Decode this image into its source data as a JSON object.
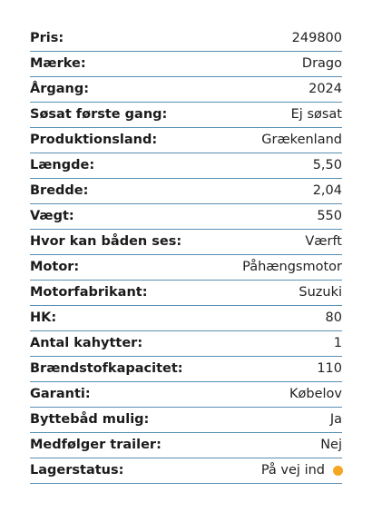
{
  "specs": [
    {
      "label": "Pris:",
      "value": "249800"
    },
    {
      "label": "Mærke:",
      "value": "Drago"
    },
    {
      "label": "Årgang:",
      "value": "2024"
    },
    {
      "label": "Søsat første gang:",
      "value": "Ej søsat"
    },
    {
      "label": "Produktionsland:",
      "value": "Grækenland"
    },
    {
      "label": "Længde:",
      "value": "5,50"
    },
    {
      "label": "Bredde:",
      "value": "2,04"
    },
    {
      "label": "Vægt:",
      "value": "550"
    },
    {
      "label": "Hvor kan båden ses:",
      "value": "Værft"
    },
    {
      "label": "Motor:",
      "value": "Påhængsmotor"
    },
    {
      "label": "Motorfabrikant:",
      "value": "Suzuki"
    },
    {
      "label": "HK:",
      "value": "80"
    },
    {
      "label": "Antal kahytter:",
      "value": "1"
    },
    {
      "label": "Brændstofkapacitet:",
      "value": "110"
    },
    {
      "label": "Garanti:",
      "value": "Købelov"
    },
    {
      "label": "Byttebåd mulig:",
      "value": "Ja"
    },
    {
      "label": "Medfølger trailer:",
      "value": "Nej"
    },
    {
      "label": "Lagerstatus:",
      "value": "På vej ind"
    }
  ],
  "status_dot_color": "#f5a623",
  "divider_color": "#5a8fb4"
}
